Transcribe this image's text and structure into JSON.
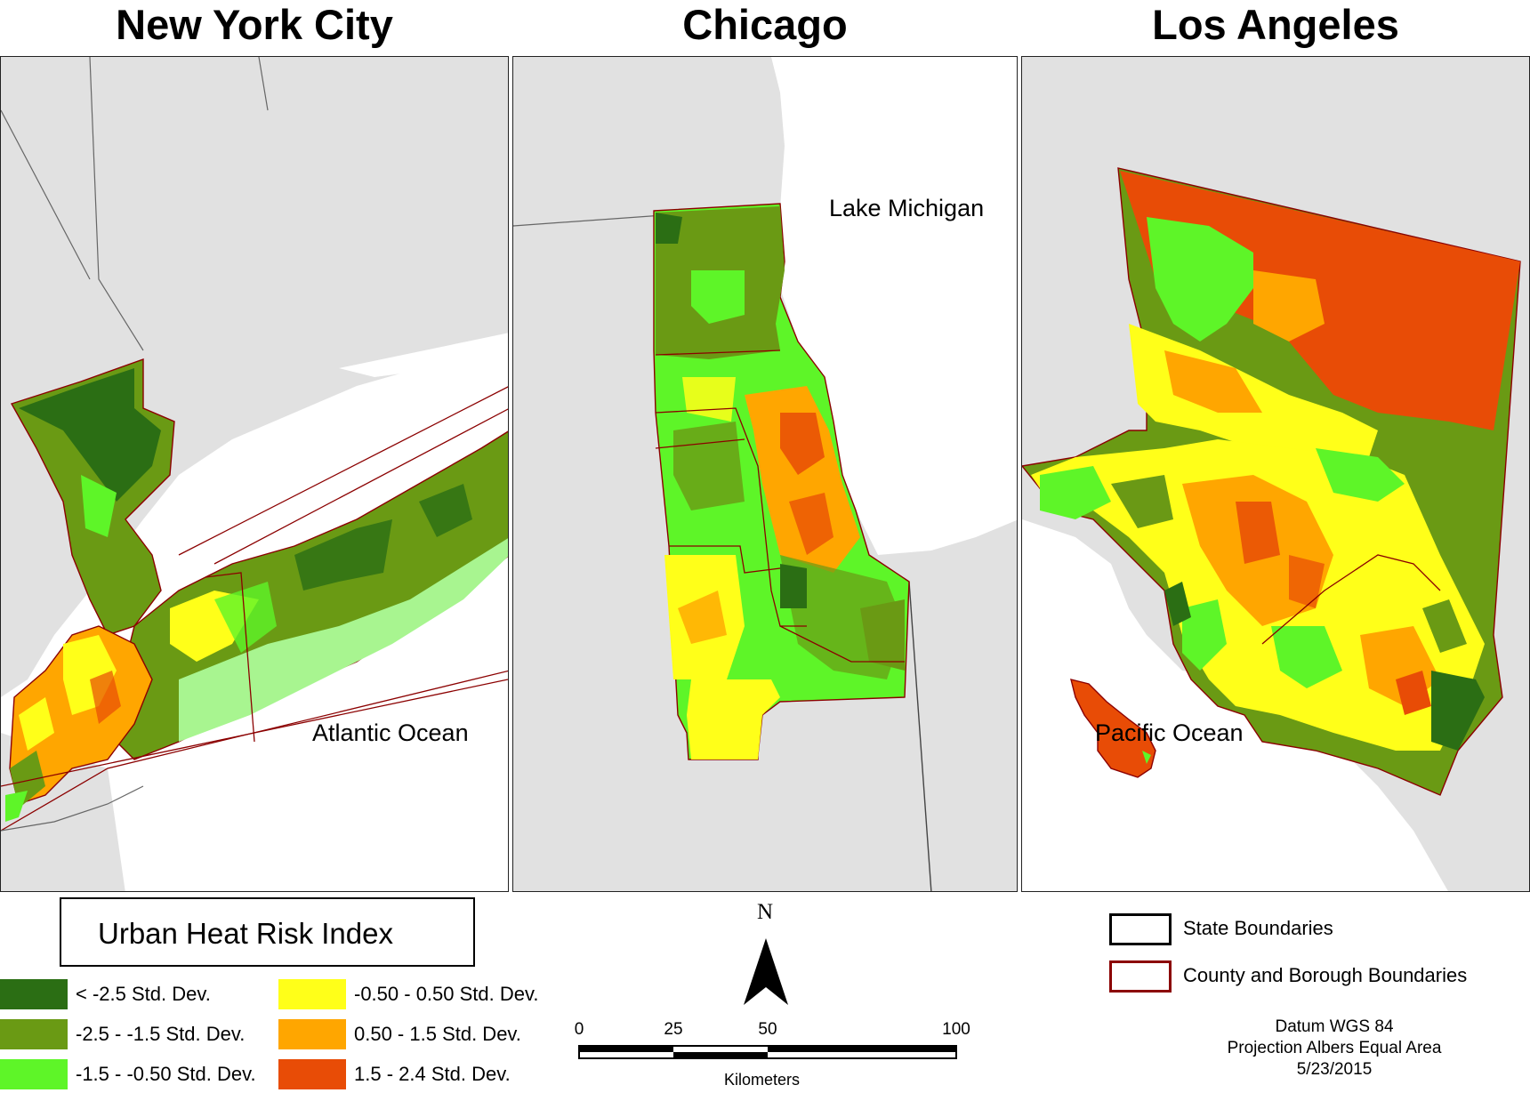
{
  "panels": [
    {
      "title": "New York City",
      "water_label": "Atlantic Ocean"
    },
    {
      "title": "Chicago",
      "water_label": "Lake Michigan"
    },
    {
      "title": "Los Angeles",
      "water_label": "Pacific Ocean"
    }
  ],
  "legend": {
    "title": "Urban Heat Risk Index",
    "classes": [
      {
        "label": "< -2.5 Std. Dev.",
        "color": "#2b6e14"
      },
      {
        "label": "-2.5 - -1.5 Std. Dev.",
        "color": "#6a9a14"
      },
      {
        "label": "-1.5 - -0.50 Std. Dev.",
        "color": "#5ef528"
      },
      {
        "label": "-0.50 - 0.50 Std. Dev.",
        "color": "#ffff19"
      },
      {
        "label": "0.50 - 1.5 Std. Dev.",
        "color": "#ffa600"
      },
      {
        "label": "1.5 - 2.4 Std. Dev.",
        "color": "#e84c06"
      }
    ]
  },
  "north_arrow": {
    "letter": "N"
  },
  "scale_bar": {
    "ticks": [
      "0",
      "25",
      "50",
      "100"
    ],
    "unit": "Kilometers"
  },
  "boundaries": [
    {
      "label": "State Boundaries",
      "color": "#000000"
    },
    {
      "label": "County and Borough Boundaries",
      "color": "#8b0000"
    }
  ],
  "metadata": {
    "datum": "Datum WGS 84",
    "projection": "Projection Albers Equal Area",
    "date": "5/23/2015"
  }
}
